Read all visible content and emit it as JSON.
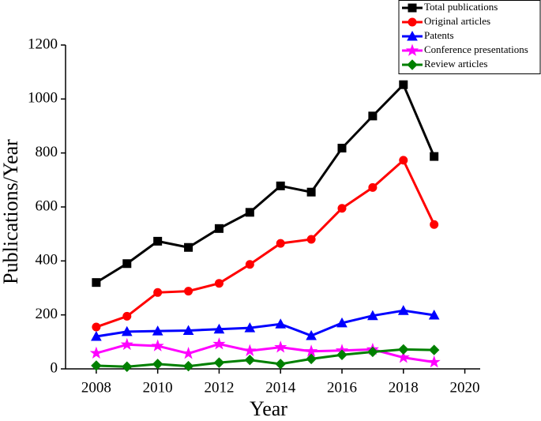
{
  "chart_data": {
    "type": "line",
    "x_label": "Year",
    "y_label": "Publications/Year",
    "x": [
      2008,
      2009,
      2010,
      2011,
      2012,
      2013,
      2014,
      2015,
      2016,
      2017,
      2018,
      2019
    ],
    "xlim": [
      2007,
      2020.5
    ],
    "xticks": [
      2008,
      2010,
      2012,
      2014,
      2016,
      2018,
      2020
    ],
    "ylim": [
      0,
      1200
    ],
    "yticks": [
      0,
      200,
      400,
      600,
      800,
      1000,
      1200
    ],
    "legend": "top-right",
    "series": [
      {
        "name": "Total publications",
        "color": "#000000",
        "marker": "square",
        "values": [
          320,
          390,
          473,
          450,
          520,
          580,
          678,
          655,
          818,
          937,
          1053,
          787
        ]
      },
      {
        "name": "Original articles",
        "color": "#ff0000",
        "marker": "circle",
        "values": [
          155,
          195,
          283,
          288,
          317,
          387,
          465,
          480,
          595,
          672,
          773,
          535
        ]
      },
      {
        "name": "Patents",
        "color": "#0000ff",
        "marker": "triangle",
        "values": [
          120,
          138,
          140,
          142,
          147,
          152,
          166,
          123,
          170,
          197,
          216,
          199
        ]
      },
      {
        "name": "Conference presentations",
        "color": "#ff00ff",
        "marker": "star",
        "values": [
          58,
          90,
          85,
          57,
          92,
          67,
          80,
          65,
          68,
          72,
          42,
          25
        ]
      },
      {
        "name": "Review articles",
        "color": "#008000",
        "marker": "diamond",
        "values": [
          12,
          8,
          18,
          10,
          23,
          33,
          18,
          37,
          52,
          63,
          72,
          70
        ]
      }
    ]
  }
}
